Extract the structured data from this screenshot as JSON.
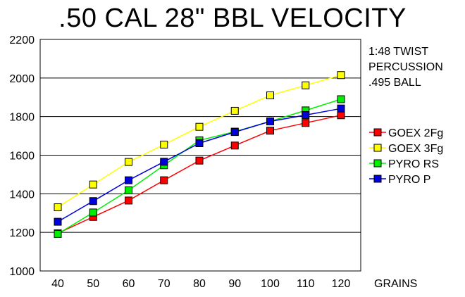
{
  "chart_data": {
    "type": "line",
    "title": ".50 CAL 28\" BBL VELOCITY",
    "xlabel": "GRAINS",
    "ylabel": "",
    "x": [
      40,
      50,
      60,
      70,
      80,
      90,
      100,
      110,
      120
    ],
    "ylim": [
      1000,
      2200
    ],
    "yticks": [
      1000,
      1200,
      1400,
      1600,
      1800,
      2000,
      2200
    ],
    "grid": "horizontal",
    "legend_placement": "right",
    "notes": [
      "1:48 TWIST",
      "PERCUSSION",
      ".495 BALL"
    ],
    "series": [
      {
        "name": "GOEX 2Fg",
        "color": "#ff0000",
        "values": [
          1195,
          1280,
          1365,
          1470,
          1572,
          1650,
          1727,
          1767,
          1807
        ]
      },
      {
        "name": "GOEX 3Fg",
        "color": "#ffff00",
        "values": [
          1330,
          1448,
          1565,
          1655,
          1747,
          1830,
          1910,
          1962,
          2015
        ]
      },
      {
        "name": "PYRO RS",
        "color": "#00ee00",
        "values": [
          1192,
          1303,
          1418,
          1548,
          1677,
          1722,
          1775,
          1832,
          1890
        ]
      },
      {
        "name": "PYRO P",
        "color": "#0000dd",
        "values": [
          1255,
          1362,
          1470,
          1566,
          1662,
          1720,
          1775,
          1808,
          1842
        ]
      }
    ]
  }
}
